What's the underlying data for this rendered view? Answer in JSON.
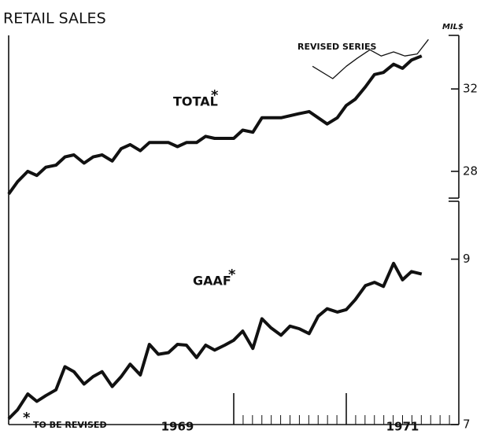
{
  "chart_data": [
    {
      "type": "line",
      "title": "RETAIL SALES",
      "y_label": "MIL$",
      "xlim": [
        1968,
        1972
      ],
      "ylim": [
        26.7,
        34.6
      ],
      "yticks": [
        28,
        32
      ],
      "series": [
        {
          "name": "TOTAL",
          "color": "#111111",
          "footnote_mark": "*",
          "x": [
            1968.0,
            1968.08,
            1968.17,
            1968.25,
            1968.33,
            1968.42,
            1968.5,
            1968.58,
            1968.67,
            1968.75,
            1968.83,
            1968.92,
            1969.0,
            1969.08,
            1969.17,
            1969.25,
            1969.33,
            1969.42,
            1969.5,
            1969.58,
            1969.67,
            1969.75,
            1969.83,
            1969.92,
            1970.0,
            1970.08,
            1970.17,
            1970.25,
            1970.33,
            1970.42,
            1970.5,
            1970.58,
            1970.67,
            1970.75,
            1970.83,
            1970.92,
            1971.0,
            1971.08,
            1971.17,
            1971.25,
            1971.33,
            1971.42,
            1971.5,
            1971.58,
            1971.67
          ],
          "values": [
            26.9,
            27.5,
            28.0,
            27.8,
            28.2,
            28.3,
            28.7,
            28.8,
            28.4,
            28.7,
            28.8,
            28.5,
            29.1,
            29.3,
            29.0,
            29.4,
            29.4,
            29.4,
            29.2,
            29.4,
            29.4,
            29.7,
            29.6,
            29.6,
            29.6,
            30.0,
            29.9,
            30.6,
            30.6,
            30.6,
            30.7,
            30.8,
            30.9,
            30.6,
            30.3,
            30.6,
            31.2,
            31.5,
            32.1,
            32.7,
            32.8,
            33.2,
            33.0,
            33.4,
            33.6
          ]
        },
        {
          "name": "REVISED SERIES",
          "color": "#111111",
          "x": [
            1970.7,
            1970.88,
            1971.0,
            1971.1,
            1971.21,
            1971.31,
            1971.42,
            1971.52,
            1971.63,
            1971.73
          ],
          "values": [
            33.1,
            32.5,
            33.1,
            33.5,
            33.9,
            33.6,
            33.8,
            33.6,
            33.7,
            34.4
          ]
        }
      ]
    },
    {
      "type": "line",
      "xlim": [
        1968,
        1972
      ],
      "ylim": [
        7,
        9.7
      ],
      "yticks": [
        7,
        9
      ],
      "xticks": [
        {
          "value": 1969.5,
          "label": "1969"
        },
        {
          "value": 1971.5,
          "label": "1971"
        }
      ],
      "footnote": {
        "mark": "*",
        "text": "TO BE REVISED"
      },
      "series": [
        {
          "name": "GAAF",
          "color": "#111111",
          "footnote_mark": "*",
          "x": [
            1968.0,
            1968.08,
            1968.17,
            1968.25,
            1968.33,
            1968.42,
            1968.5,
            1968.58,
            1968.67,
            1968.75,
            1968.83,
            1968.92,
            1969.0,
            1969.08,
            1969.17,
            1969.25,
            1969.33,
            1969.42,
            1969.5,
            1969.58,
            1969.67,
            1969.75,
            1969.83,
            1969.92,
            1970.0,
            1970.08,
            1970.17,
            1970.25,
            1970.33,
            1970.42,
            1970.5,
            1970.58,
            1970.67,
            1970.75,
            1970.83,
            1970.92,
            1971.0,
            1971.08,
            1971.17,
            1971.25,
            1971.33,
            1971.42,
            1971.5,
            1971.58,
            1971.67
          ],
          "values": [
            7.07,
            7.18,
            7.37,
            7.28,
            7.35,
            7.42,
            7.7,
            7.64,
            7.49,
            7.58,
            7.64,
            7.46,
            7.58,
            7.73,
            7.6,
            7.97,
            7.85,
            7.87,
            7.97,
            7.96,
            7.81,
            7.96,
            7.9,
            7.96,
            8.02,
            8.13,
            7.92,
            8.28,
            8.17,
            8.08,
            8.19,
            8.16,
            8.1,
            8.31,
            8.4,
            8.36,
            8.39,
            8.51,
            8.68,
            8.72,
            8.67,
            8.95,
            8.75,
            8.85,
            8.82
          ]
        }
      ]
    }
  ]
}
